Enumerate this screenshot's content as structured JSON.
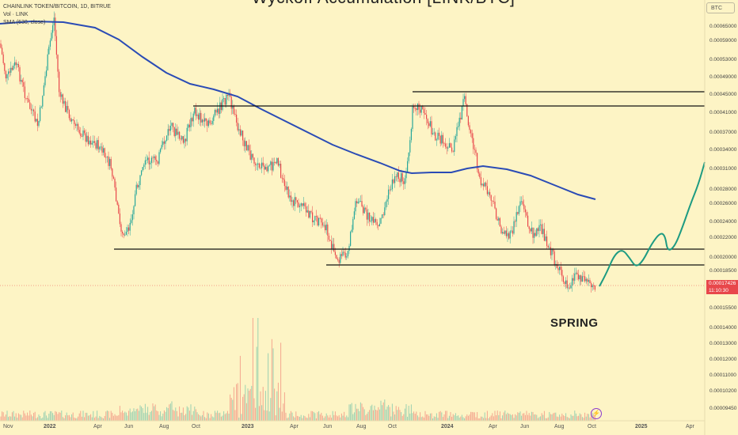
{
  "title": "Wyckoff Accumulation [LINK/BTC]",
  "legend": {
    "symbol": "CHAINLINK TOKEN/BITCOIN, 1D, BITRUE",
    "volume": "Vol · LINK",
    "sma": "SMA (630, close)"
  },
  "unit_button": "BTC",
  "annotation": "SPRING",
  "price_tag": {
    "price": "0.00017426",
    "countdown": "11:10:30"
  },
  "y_axis_ticks": [
    "0.00065000",
    "0.00059000",
    "0.00053000",
    "0.00049000",
    "0.00045000",
    "0.00041000",
    "0.00037000",
    "0.00034000",
    "0.00031000",
    "0.00028000",
    "0.00026000",
    "0.00024000",
    "0.00022000",
    "0.00020000",
    "0.00018500",
    "0.00015500",
    "0.00014000",
    "0.00013000",
    "0.00012000",
    "0.00011000",
    "0.00010200",
    "0.00009450"
  ],
  "x_axis_ticks": [
    "Nov",
    "2022",
    "Apr",
    "Jun",
    "Aug",
    "Oct",
    "2023",
    "Apr",
    "Jun",
    "Aug",
    "Oct",
    "2024",
    "Apr",
    "Jun",
    "Aug",
    "Oct",
    "2025",
    "Apr"
  ],
  "colors": {
    "background": "#fdf4c5",
    "sma": "#2a4bb5",
    "projection": "#1d9b82",
    "up": "#26a69a",
    "down": "#e8474b"
  }
}
